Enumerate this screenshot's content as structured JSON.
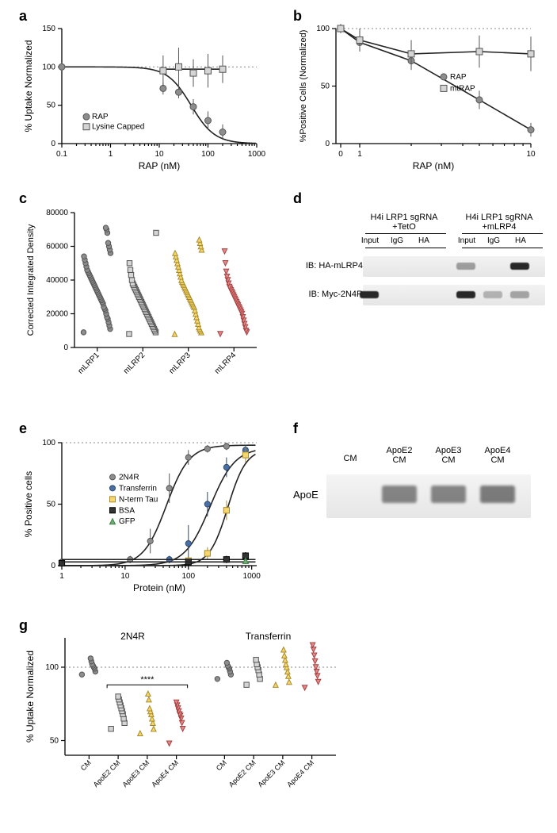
{
  "colors": {
    "gray_marker": "#8d8d8d",
    "gray_edge": "#555555",
    "lightgray_marker": "#d5d5d5",
    "lightgray_edge": "#555555",
    "yellow_marker": "#f5d76e",
    "yellow_edge": "#a88a2a",
    "red_marker": "#e08a8a",
    "red_edge": "#a84040",
    "blue_marker": "#4a6fa5",
    "blue_edge": "#2b4870",
    "green_marker": "#6fae75",
    "green_edge": "#3d7d45",
    "black_marker": "#333333",
    "curve_black": "#222222",
    "bg": "#ffffff"
  },
  "panel_a": {
    "letter": "a",
    "xlabel": "RAP (nM)",
    "ylabel": "% Uptake Normalized",
    "x_log_ticks": [
      0.1,
      1,
      10,
      100,
      1000
    ],
    "y_ticks": [
      0,
      50,
      100,
      150
    ],
    "ref_line": 100,
    "legend": [
      "RAP",
      "Lysine Capped"
    ],
    "series": {
      "RAP": {
        "marker": "circle",
        "fill": "#8d8d8d",
        "edge": "#555555",
        "points": [
          {
            "x": 0.1,
            "y": 100,
            "err": 5
          },
          {
            "x": 12,
            "y": 72,
            "err": 8
          },
          {
            "x": 25,
            "y": 67,
            "err": 8
          },
          {
            "x": 50,
            "y": 48,
            "err": 10
          },
          {
            "x": 100,
            "y": 30,
            "err": 12
          },
          {
            "x": 200,
            "y": 15,
            "err": 10
          }
        ]
      },
      "LysineCapped": {
        "marker": "square",
        "fill": "#d5d5d5",
        "edge": "#555555",
        "points": [
          {
            "x": 12,
            "y": 95,
            "err": 20
          },
          {
            "x": 25,
            "y": 100,
            "err": 25
          },
          {
            "x": 50,
            "y": 92,
            "err": 18
          },
          {
            "x": 100,
            "y": 95,
            "err": 22
          },
          {
            "x": 200,
            "y": 97,
            "err": 18
          }
        ]
      }
    }
  },
  "panel_b": {
    "letter": "b",
    "xlabel": "RAP (nM)",
    "ylabel": "%Positive Cells (Normalized)",
    "x_ticks": [
      0,
      1,
      10
    ],
    "x_log_minor": [
      2,
      3,
      4,
      5,
      6,
      7,
      8,
      9
    ],
    "y_ticks": [
      0,
      50,
      100
    ],
    "ref_line": 100,
    "legend": [
      "RAP",
      "mtRAP"
    ],
    "series": {
      "RAP": {
        "marker": "circle",
        "fill": "#8d8d8d",
        "edge": "#555555",
        "points": [
          {
            "x": 0.02,
            "y": 100,
            "err": 4
          },
          {
            "x": 1,
            "y": 88,
            "err": 8
          },
          {
            "x": 2,
            "y": 72,
            "err": 8
          },
          {
            "x": 5,
            "y": 38,
            "err": 8
          },
          {
            "x": 10,
            "y": 12,
            "err": 6
          }
        ]
      },
      "mtRAP": {
        "marker": "square",
        "fill": "#d5d5d5",
        "edge": "#555555",
        "points": [
          {
            "x": 0.02,
            "y": 100,
            "err": 4
          },
          {
            "x": 1,
            "y": 90,
            "err": 10
          },
          {
            "x": 2,
            "y": 78,
            "err": 12
          },
          {
            "x": 5,
            "y": 80,
            "err": 14
          },
          {
            "x": 10,
            "y": 78,
            "err": 15
          }
        ]
      }
    }
  },
  "panel_c": {
    "letter": "c",
    "ylabel": "Corrected Integrated Density",
    "y_ticks": [
      0,
      20000,
      40000,
      60000,
      80000
    ],
    "categories": [
      "mLRP1",
      "mLRP2",
      "mLRP3",
      "mLRP4"
    ],
    "markers": [
      "circle",
      "square",
      "triangle",
      "down-triangle"
    ],
    "fills": [
      "#8d8d8d",
      "#d5d5d5",
      "#f5d76e",
      "#e08a8a"
    ],
    "edges": [
      "#555555",
      "#555555",
      "#a88a2a",
      "#a84040"
    ],
    "values": {
      "mLRP1": [
        9000,
        11000,
        13000,
        15000,
        17000,
        18000,
        20000,
        22000,
        23000,
        24000,
        26000,
        27000,
        28000,
        29000,
        30000,
        31000,
        32000,
        33000,
        34000,
        35000,
        36000,
        37000,
        38000,
        39000,
        40000,
        41000,
        42000,
        43000,
        44000,
        45000,
        46000,
        48000,
        50000,
        52000,
        54000,
        56000,
        58000,
        60000,
        62000,
        68000,
        70000,
        71000
      ],
      "mLRP2": [
        8000,
        9000,
        10000,
        11000,
        12000,
        13000,
        14000,
        15000,
        16000,
        17000,
        18000,
        19000,
        20000,
        21000,
        22000,
        23000,
        24000,
        25000,
        26000,
        27000,
        28000,
        29000,
        30000,
        31000,
        32000,
        33000,
        34000,
        35000,
        36000,
        37000,
        38000,
        40000,
        43000,
        46000,
        50000,
        68000
      ],
      "mLRP3": [
        8000,
        9000,
        10000,
        11000,
        12000,
        14000,
        16000,
        18000,
        20000,
        22000,
        24000,
        25000,
        26000,
        27000,
        28000,
        29000,
        30000,
        31000,
        32000,
        33000,
        34000,
        35000,
        36000,
        37000,
        38000,
        39000,
        40000,
        42000,
        44000,
        46000,
        48000,
        50000,
        52000,
        54000,
        56000,
        58000,
        60000,
        62000,
        64000
      ],
      "mLRP4": [
        8000,
        9000,
        10000,
        12000,
        14000,
        16000,
        18000,
        20000,
        21000,
        22000,
        23000,
        24000,
        25000,
        26000,
        27000,
        28000,
        29000,
        30000,
        31000,
        32000,
        33000,
        34000,
        35000,
        36000,
        38000,
        40000,
        42000,
        45000,
        50000,
        57000
      ]
    }
  },
  "panel_d": {
    "letter": "d",
    "group_labels": [
      "H4i LRP1 sgRNA +TetO",
      "H4i LRP1 sgRNA +mLRP4"
    ],
    "lanes": [
      "Input",
      "IgG",
      "HA",
      "Input",
      "IgG",
      "HA"
    ],
    "rows": [
      {
        "label": "IB: HA-mLRP4",
        "bands": [
          0,
          0,
          0,
          0.2,
          0,
          1.0
        ]
      },
      {
        "label": "IB: Myc-2N4R",
        "bands": [
          1.0,
          0,
          0,
          1.0,
          0.05,
          0.15
        ]
      }
    ]
  },
  "panel_e": {
    "letter": "e",
    "xlabel": "Protein (nM)",
    "ylabel": "% Positive cells",
    "x_log_ticks": [
      1,
      10,
      100,
      1000
    ],
    "y_ticks": [
      0,
      50,
      100
    ],
    "ref_line": 100,
    "legend": [
      "2N4R",
      "Transferrin",
      "N-term Tau",
      "BSA",
      "GFP"
    ],
    "series": {
      "2N4R": {
        "marker": "circle",
        "fill": "#8d8d8d",
        "edge": "#555555",
        "points": [
          {
            "x": 1,
            "y": 3,
            "err": 2
          },
          {
            "x": 12,
            "y": 5,
            "err": 3
          },
          {
            "x": 25,
            "y": 20,
            "err": 10
          },
          {
            "x": 50,
            "y": 63,
            "err": 12
          },
          {
            "x": 100,
            "y": 88,
            "err": 6
          },
          {
            "x": 200,
            "y": 95,
            "err": 3
          },
          {
            "x": 400,
            "y": 97,
            "err": 3
          }
        ]
      },
      "Transferrin": {
        "marker": "circle",
        "fill": "#4a6fa5",
        "edge": "#2b4870",
        "points": [
          {
            "x": 50,
            "y": 5,
            "err": 3
          },
          {
            "x": 100,
            "y": 18,
            "err": 15
          },
          {
            "x": 200,
            "y": 50,
            "err": 10
          },
          {
            "x": 400,
            "y": 80,
            "err": 8
          },
          {
            "x": 800,
            "y": 94,
            "err": 4
          }
        ]
      },
      "NtermTau": {
        "marker": "square",
        "fill": "#f5d76e",
        "edge": "#a88a2a",
        "points": [
          {
            "x": 100,
            "y": 4,
            "err": 2
          },
          {
            "x": 200,
            "y": 10,
            "err": 5
          },
          {
            "x": 400,
            "y": 45,
            "err": 8
          },
          {
            "x": 800,
            "y": 90,
            "err": 6
          }
        ]
      },
      "BSA": {
        "marker": "square",
        "fill": "#333333",
        "edge": "#000000",
        "points": [
          {
            "x": 1,
            "y": 2,
            "err": 1
          },
          {
            "x": 100,
            "y": 3,
            "err": 2
          },
          {
            "x": 400,
            "y": 5,
            "err": 3
          },
          {
            "x": 800,
            "y": 8,
            "err": 3
          }
        ]
      },
      "GFP": {
        "marker": "triangle",
        "fill": "#6fae75",
        "edge": "#3d7d45",
        "points": [
          {
            "x": 800,
            "y": 4,
            "err": 2
          }
        ]
      }
    }
  },
  "panel_f": {
    "letter": "f",
    "row_label": "ApoE",
    "lanes": [
      "CM",
      "ApoE2 CM",
      "ApoE3 CM",
      "ApoE4 CM"
    ],
    "band_intensity": [
      0,
      0.7,
      0.7,
      0.8
    ]
  },
  "panel_g": {
    "letter": "g",
    "ylabel": "% Uptake Normalized",
    "y_ticks": [
      50,
      100
    ],
    "ref_line": 100,
    "blocks": [
      "2N4R",
      "Transferrin"
    ],
    "categories": [
      "CM",
      "ApoE2 CM",
      "ApoE3 CM",
      "ApoE4 CM"
    ],
    "markers": [
      "circle",
      "square",
      "triangle",
      "down-triangle"
    ],
    "fills": [
      "#8d8d8d",
      "#d5d5d5",
      "#f5d76e",
      "#e08a8a"
    ],
    "edges": [
      "#555555",
      "#555555",
      "#a88a2a",
      "#a84040"
    ],
    "sig_label": "****",
    "values": {
      "2N4R": {
        "CM": [
          95,
          97,
          99,
          100,
          101,
          102,
          104,
          106
        ],
        "ApoE2 CM": [
          58,
          62,
          65,
          68,
          70,
          72,
          74,
          76,
          78,
          80
        ],
        "ApoE3 CM": [
          55,
          58,
          62,
          65,
          68,
          70,
          72,
          78,
          82
        ],
        "ApoE4 CM": [
          48,
          58,
          62,
          65,
          67,
          68,
          70,
          72,
          74,
          76
        ]
      },
      "Transferrin": {
        "CM": [
          92,
          95,
          97,
          99,
          100,
          101,
          103
        ],
        "ApoE2 CM": [
          88,
          92,
          95,
          98,
          100,
          102,
          105
        ],
        "ApoE3 CM": [
          88,
          90,
          94,
          97,
          100,
          102,
          105,
          108,
          112
        ],
        "ApoE4 CM": [
          86,
          90,
          94,
          97,
          100,
          104,
          108,
          112,
          115
        ]
      }
    }
  }
}
